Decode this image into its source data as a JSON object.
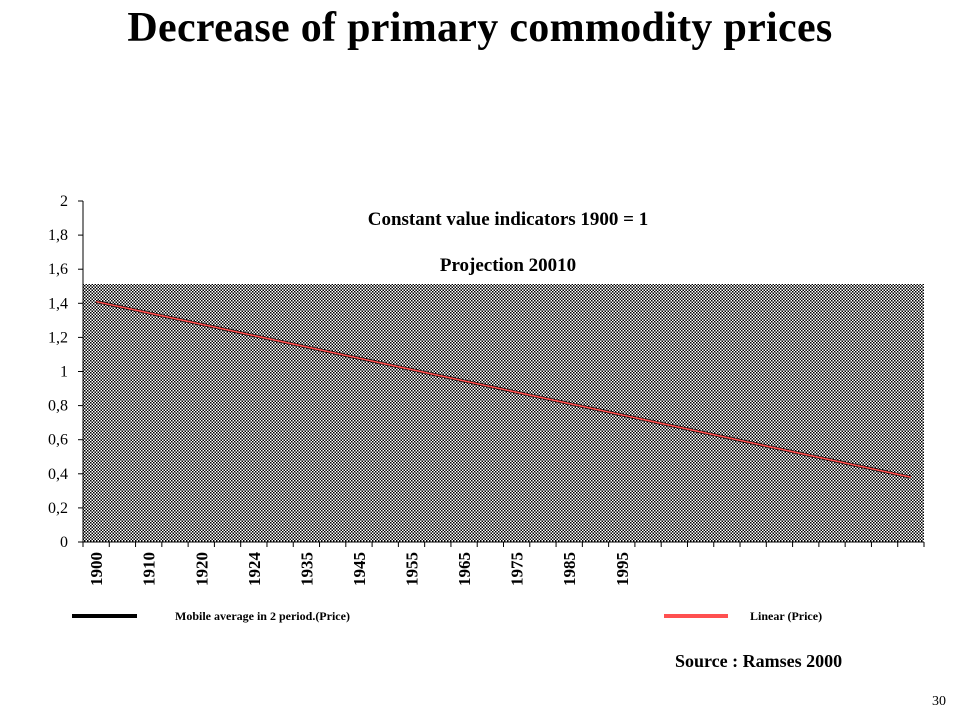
{
  "slide": {
    "title": "Decrease of  primary commodity prices",
    "source": "Source : Ramses 2000",
    "page_number": "30"
  },
  "chart_data": {
    "type": "line",
    "title": "Constant value indicators  1900 = 1",
    "subtitle": "Projection 20010",
    "ylim": [
      0,
      2
    ],
    "yticks": [
      "0",
      "0,2",
      "0,4",
      "0,6",
      "0,8",
      "1",
      "1,2",
      "1,4",
      "1,6",
      "1,8",
      "2"
    ],
    "x_labels": [
      "1900",
      "1910",
      "1920",
      "1924",
      "1935",
      "1945",
      "1955",
      "1965",
      "1975",
      "1985",
      "1995"
    ],
    "x_positions": 32,
    "series": [
      {
        "name": "Mobile average in 2 period.(Price)",
        "color": "#000000",
        "x": [
          1,
          32
        ],
        "y": [
          1.41,
          0.38
        ]
      },
      {
        "name": "Linear (Price)",
        "color": "#ff5050",
        "x": [
          1,
          32
        ],
        "y": [
          1.41,
          0.38
        ]
      }
    ],
    "plot_fill_pattern": "stippled",
    "grid": false,
    "legend_position": "bottom"
  }
}
